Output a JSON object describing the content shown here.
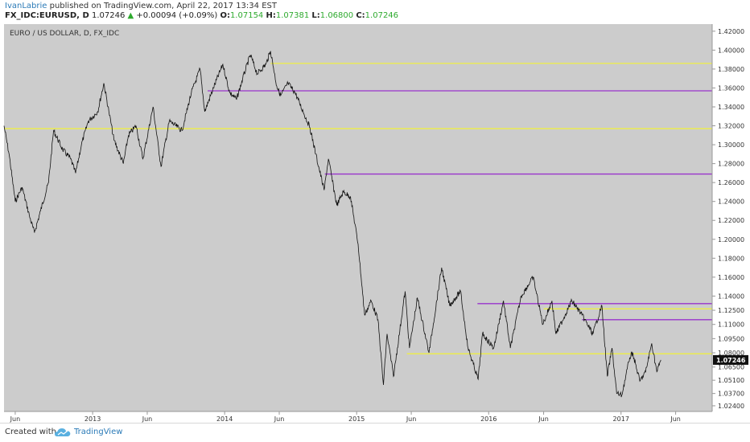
{
  "header": {
    "author": "IvanLabrie",
    "published_text": " published on TradingView.com, April 22, 2017 13:34 EST",
    "symbol": "FX_IDC:EURUSD, D",
    "last": "1.07246",
    "change": "+0.00094 (+0.09%)",
    "o_label": "O:",
    "o": "1.07154",
    "h_label": "H:",
    "h": "1.07381",
    "l_label": "L:",
    "l": "1.06800",
    "c_label": "C:",
    "c": "1.07246"
  },
  "chart_data": {
    "type": "line",
    "title": "EURO / US DOLLAR, D, FX_IDC",
    "x_range": [
      "2012-05-01",
      "2017-09-10"
    ],
    "ylim": [
      1.018,
      1.4275
    ],
    "y_ticks": [
      "1.42000",
      "1.40000",
      "1.38000",
      "1.36000",
      "1.34000",
      "1.32000",
      "1.30000",
      "1.28000",
      "1.26000",
      "1.24000",
      "1.22000",
      "1.20000",
      "1.18000",
      "1.16000",
      "1.14000",
      "1.12500",
      "1.11000",
      "1.09500",
      "1.08000",
      "1.06500",
      "1.05100",
      "1.03700",
      "1.02400"
    ],
    "x_ticks": [
      {
        "label": "Jun",
        "date": "2012-06-01"
      },
      {
        "label": "2013",
        "date": "2013-01-01"
      },
      {
        "label": "Jun",
        "date": "2013-06-01"
      },
      {
        "label": "2014",
        "date": "2014-01-01"
      },
      {
        "label": "Jun",
        "date": "2014-06-01"
      },
      {
        "label": "2015",
        "date": "2015-01-01"
      },
      {
        "label": "Jun",
        "date": "2015-06-01"
      },
      {
        "label": "2016",
        "date": "2016-01-01"
      },
      {
        "label": "Jun",
        "date": "2016-06-01"
      },
      {
        "label": "2017",
        "date": "2017-01-01"
      },
      {
        "label": "Jun",
        "date": "2017-06-01"
      }
    ],
    "price_series": [
      [
        "2012-05-01",
        1.32
      ],
      [
        "2012-05-15",
        1.29
      ],
      [
        "2012-06-01",
        1.24
      ],
      [
        "2012-06-20",
        1.255
      ],
      [
        "2012-07-10",
        1.225
      ],
      [
        "2012-07-24",
        1.207
      ],
      [
        "2012-08-10",
        1.23
      ],
      [
        "2012-09-01",
        1.26
      ],
      [
        "2012-09-15",
        1.315
      ],
      [
        "2012-10-10",
        1.295
      ],
      [
        "2012-11-01",
        1.285
      ],
      [
        "2012-11-15",
        1.27
      ],
      [
        "2012-12-01",
        1.3
      ],
      [
        "2012-12-20",
        1.325
      ],
      [
        "2013-01-15",
        1.335
      ],
      [
        "2013-02-01",
        1.365
      ],
      [
        "2013-02-15",
        1.335
      ],
      [
        "2013-03-01",
        1.305
      ],
      [
        "2013-03-27",
        1.28
      ],
      [
        "2013-04-10",
        1.31
      ],
      [
        "2013-05-01",
        1.32
      ],
      [
        "2013-05-20",
        1.285
      ],
      [
        "2013-06-17",
        1.34
      ],
      [
        "2013-07-09",
        1.277
      ],
      [
        "2013-08-01",
        1.325
      ],
      [
        "2013-09-05",
        1.315
      ],
      [
        "2013-10-01",
        1.355
      ],
      [
        "2013-10-25",
        1.38
      ],
      [
        "2013-11-07",
        1.335
      ],
      [
        "2013-12-01",
        1.36
      ],
      [
        "2013-12-27",
        1.385
      ],
      [
        "2014-01-15",
        1.355
      ],
      [
        "2014-02-03",
        1.348
      ],
      [
        "2014-02-20",
        1.37
      ],
      [
        "2014-03-13",
        1.395
      ],
      [
        "2014-04-01",
        1.375
      ],
      [
        "2014-04-25",
        1.385
      ],
      [
        "2014-05-08",
        1.399
      ],
      [
        "2014-05-25",
        1.362
      ],
      [
        "2014-06-05",
        1.352
      ],
      [
        "2014-06-25",
        1.365
      ],
      [
        "2014-07-15",
        1.355
      ],
      [
        "2014-08-06",
        1.335
      ],
      [
        "2014-08-25",
        1.318
      ],
      [
        "2014-09-10",
        1.29
      ],
      [
        "2014-10-03",
        1.252
      ],
      [
        "2014-10-15",
        1.285
      ],
      [
        "2014-11-07",
        1.236
      ],
      [
        "2014-11-25",
        1.25
      ],
      [
        "2014-12-15",
        1.245
      ],
      [
        "2015-01-05",
        1.195
      ],
      [
        "2015-01-23",
        1.12
      ],
      [
        "2015-02-10",
        1.135
      ],
      [
        "2015-03-01",
        1.115
      ],
      [
        "2015-03-16",
        1.046
      ],
      [
        "2015-03-26",
        1.1
      ],
      [
        "2015-04-13",
        1.055
      ],
      [
        "2015-05-15",
        1.145
      ],
      [
        "2015-05-27",
        1.085
      ],
      [
        "2015-06-18",
        1.138
      ],
      [
        "2015-07-20",
        1.08
      ],
      [
        "2015-08-24",
        1.17
      ],
      [
        "2015-09-15",
        1.13
      ],
      [
        "2015-10-15",
        1.145
      ],
      [
        "2015-11-05",
        1.085
      ],
      [
        "2015-12-03",
        1.052
      ],
      [
        "2015-12-15",
        1.1
      ],
      [
        "2016-01-15",
        1.085
      ],
      [
        "2016-02-11",
        1.135
      ],
      [
        "2016-03-01",
        1.085
      ],
      [
        "2016-03-31",
        1.14
      ],
      [
        "2016-05-03",
        1.16
      ],
      [
        "2016-05-30",
        1.11
      ],
      [
        "2016-06-24",
        1.135
      ],
      [
        "2016-07-05",
        1.1
      ],
      [
        "2016-08-18",
        1.135
      ],
      [
        "2016-09-15",
        1.12
      ],
      [
        "2016-10-15",
        1.1
      ],
      [
        "2016-11-09",
        1.13
      ],
      [
        "2016-11-24",
        1.055
      ],
      [
        "2016-12-07",
        1.085
      ],
      [
        "2016-12-20",
        1.037
      ],
      [
        "2017-01-03",
        1.035
      ],
      [
        "2017-01-25",
        1.075
      ],
      [
        "2017-02-02",
        1.08
      ],
      [
        "2017-02-22",
        1.05
      ],
      [
        "2017-03-10",
        1.06
      ],
      [
        "2017-03-27",
        1.09
      ],
      [
        "2017-04-10",
        1.06
      ],
      [
        "2017-04-21",
        1.07246
      ]
    ],
    "levels": [
      {
        "price": 1.386,
        "start": "2014-05-08",
        "color": "#eeee44"
      },
      {
        "price": 1.357,
        "start": "2013-11-15",
        "color": "#9933cc"
      },
      {
        "price": 1.317,
        "start": "2012-05-01",
        "color": "#eeee44"
      },
      {
        "price": 1.269,
        "start": "2014-10-05",
        "color": "#9933cc"
      },
      {
        "price": 1.132,
        "start": "2015-12-01",
        "color": "#9933cc"
      },
      {
        "price": 1.1265,
        "start": "2016-06-01",
        "color": "#eeee44"
      },
      {
        "price": 1.115,
        "start": "2016-09-15",
        "color": "#9933cc"
      },
      {
        "price": 1.079,
        "start": "2015-05-20",
        "color": "#eeee44"
      }
    ],
    "last_price_label": "1.07246",
    "colors": {
      "background": "#cccccc",
      "line": "#111111",
      "axis_text": "#333333",
      "last_tag_bg": "#111111",
      "last_tag_text": "#ffffff"
    }
  },
  "footer": {
    "created_with": "Created with",
    "logo_icon": "tradingview-cloud-icon",
    "brand": "TradingView"
  }
}
